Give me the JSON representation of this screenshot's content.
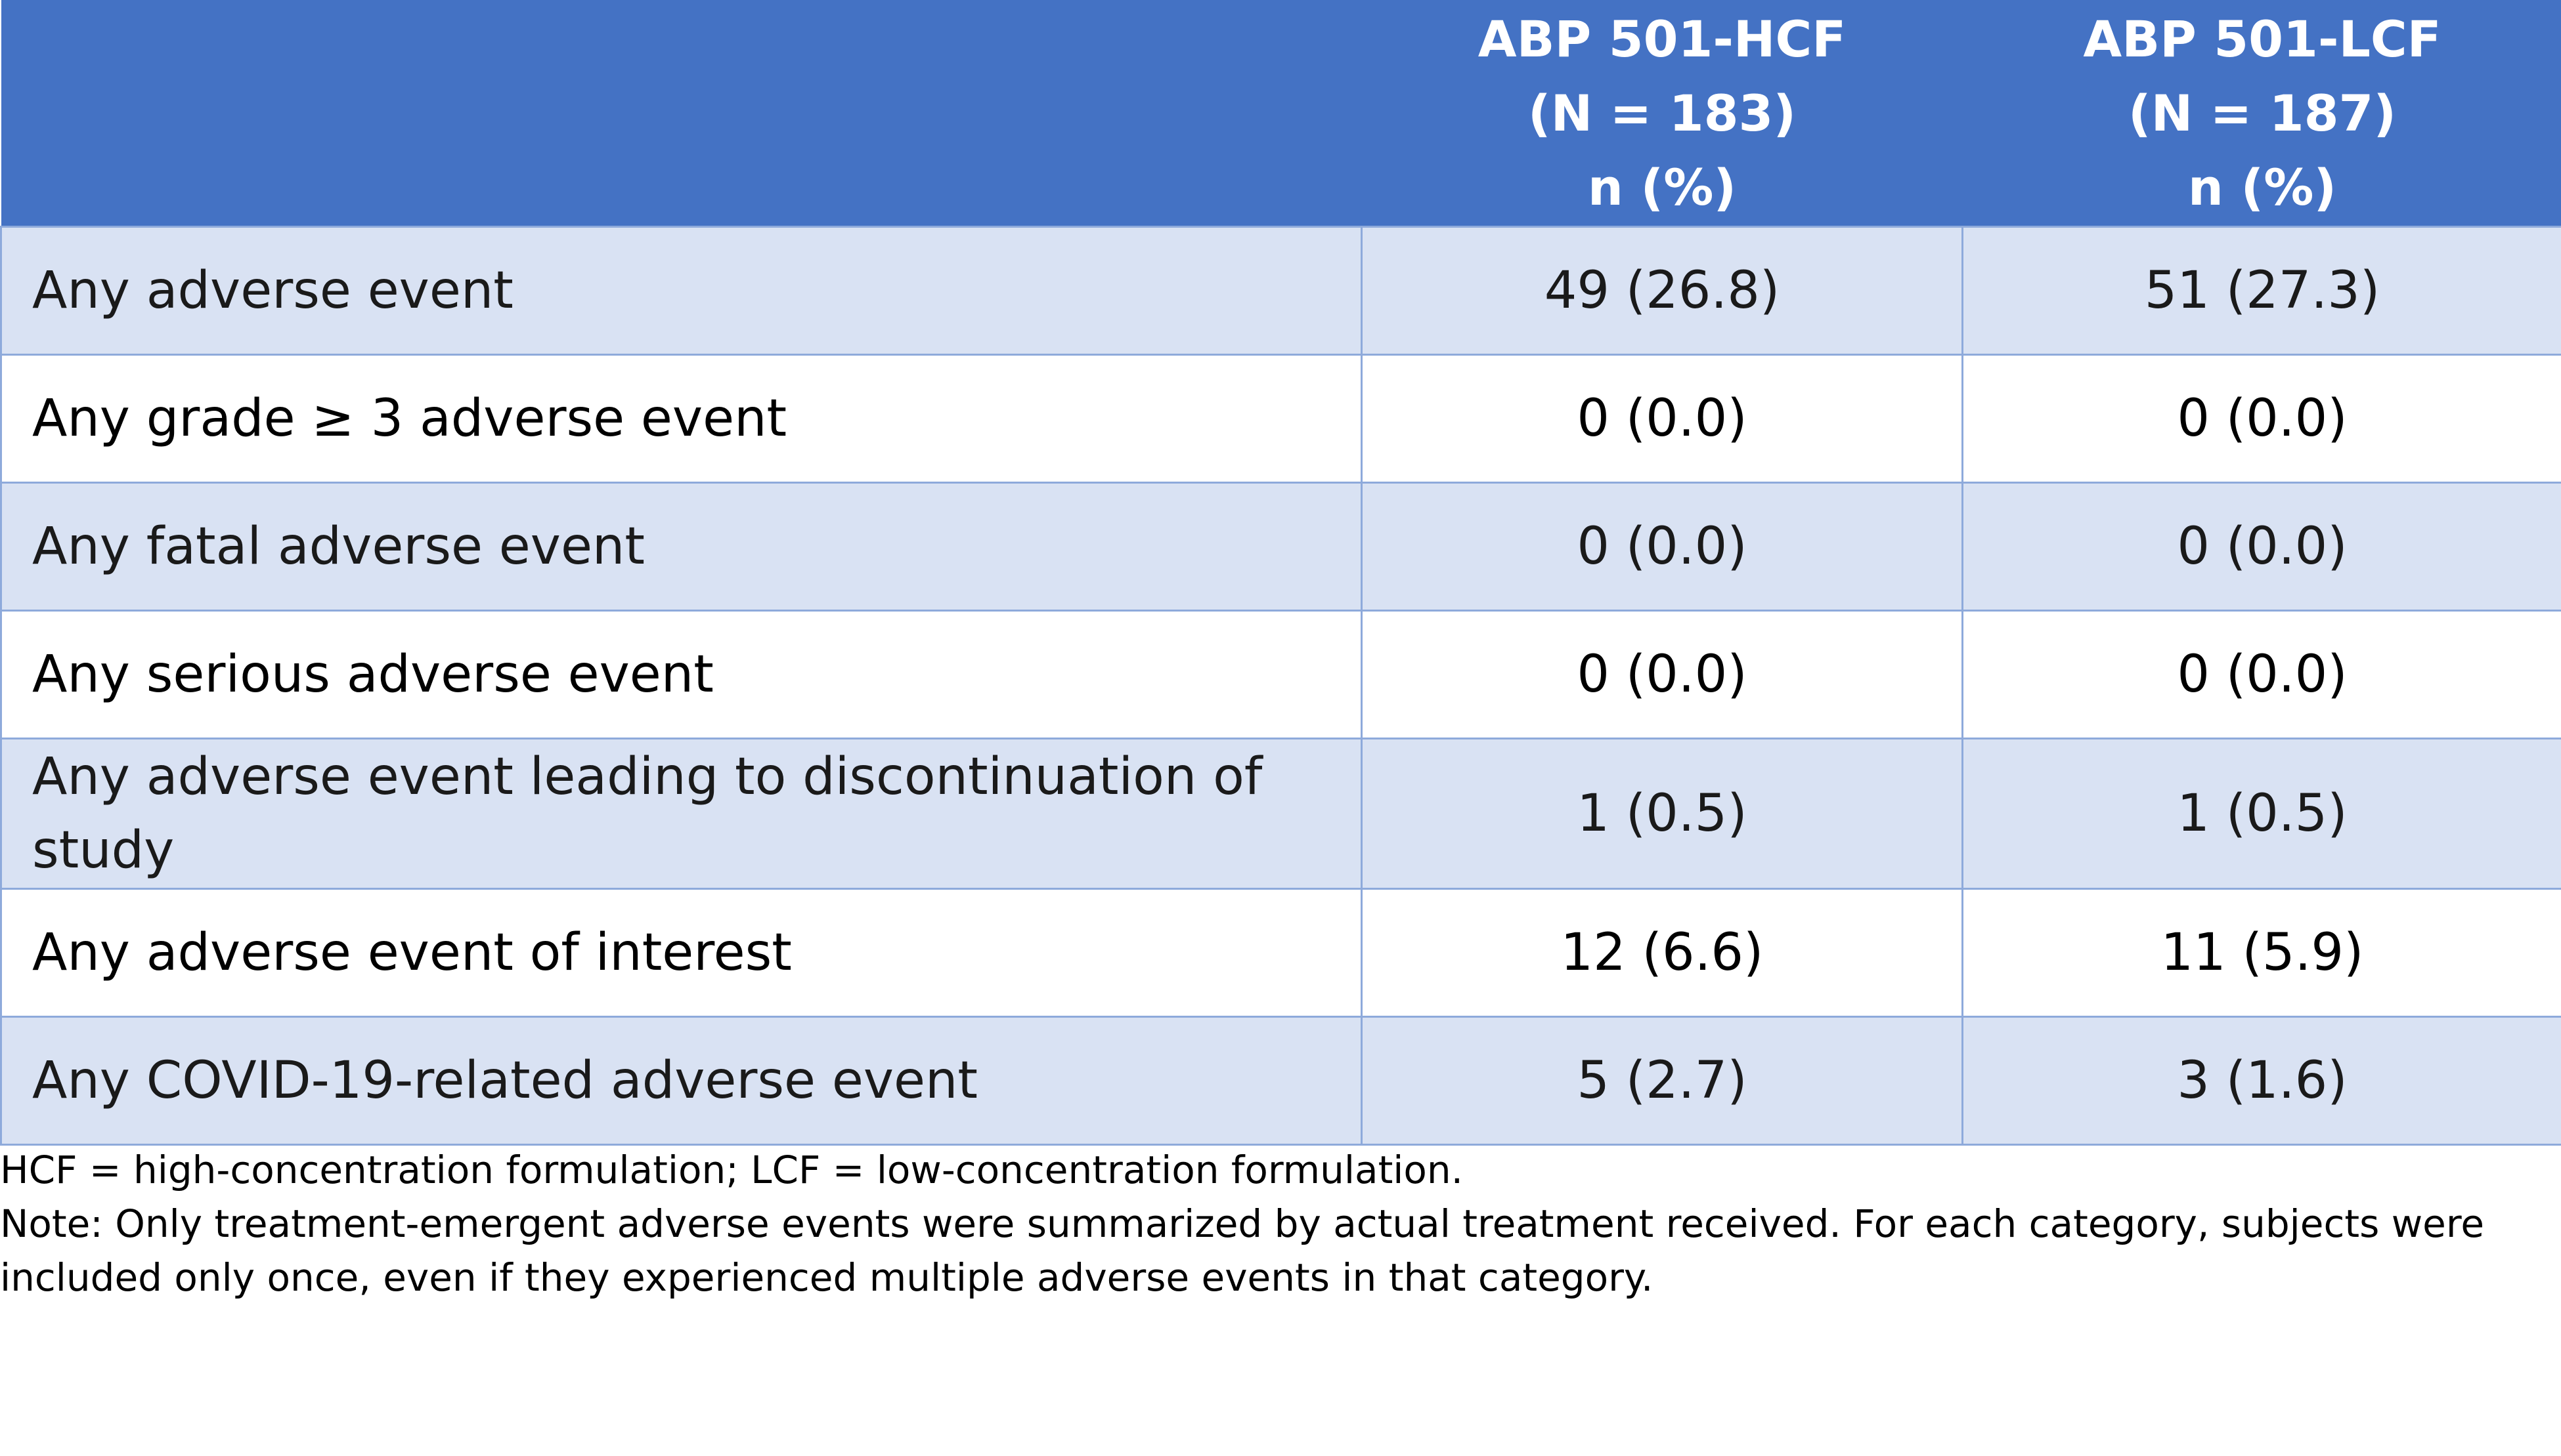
{
  "header": {
    "columns": [
      {
        "lines": [
          "ABP 501-HCF",
          "(N = 183)",
          "n (%)"
        ]
      },
      {
        "lines": [
          "ABP 501-LCF",
          "(N = 187)",
          "n (%)"
        ]
      }
    ]
  },
  "rows": [
    {
      "label": "Any adverse event",
      "hcf": "49 (26.8)",
      "lcf": "51 (27.3)"
    },
    {
      "label": "Any grade ≥ 3 adverse event",
      "hcf": "0 (0.0)",
      "lcf": "0 (0.0)"
    },
    {
      "label": "Any fatal adverse event",
      "hcf": "0 (0.0)",
      "lcf": "0 (0.0)"
    },
    {
      "label": "Any serious adverse event",
      "hcf": "0 (0.0)",
      "lcf": "0 (0.0)"
    },
    {
      "label": "Any adverse event leading to discontinuation of study",
      "hcf": "1 (0.5)",
      "lcf": "1 (0.5)"
    },
    {
      "label": "Any adverse event of interest",
      "hcf": "12 (6.6)",
      "lcf": "11 (5.9)"
    },
    {
      "label": "Any COVID-19-related adverse event",
      "hcf": "5 (2.7)",
      "lcf": "3 (1.6)"
    }
  ],
  "footnotes": {
    "abbreviations": "HCF = high-concentration formulation; LCF = low-concentration formulation.",
    "note": "Note: Only treatment-emergent adverse events were summarized by actual treatment received. For each category, subjects were included only once, even if they experienced multiple adverse events in that category."
  }
}
